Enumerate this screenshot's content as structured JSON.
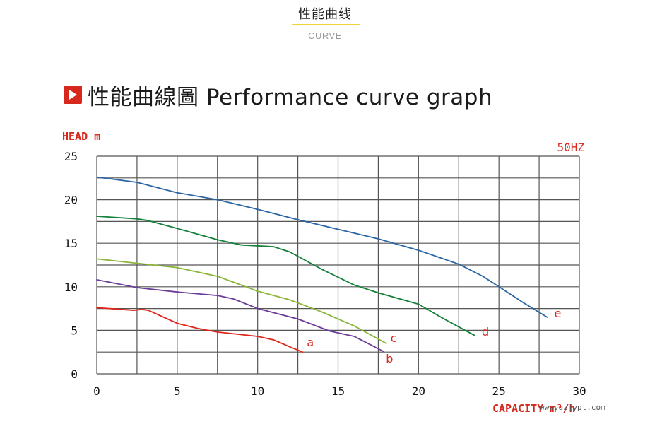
{
  "header": {
    "title": "性能曲线",
    "subtitle": "CURVE",
    "underline_color": "#f3d233"
  },
  "section": {
    "icon": "play-icon",
    "heading": "性能曲線圖 Performance curve graph",
    "accent_color": "#d7281d"
  },
  "watermark": "www.gzjypt.com",
  "chart_data": {
    "type": "line",
    "title": "",
    "xlabel": "CAPACITY m³/h",
    "ylabel": "HEAD m",
    "frequency_label": "50HZ",
    "xlim": [
      0,
      30
    ],
    "ylim": [
      0,
      25
    ],
    "x_ticks": [
      0,
      5,
      10,
      15,
      20,
      25,
      30
    ],
    "y_ticks": [
      0,
      5,
      10,
      15,
      20,
      25
    ],
    "grid": true,
    "grid_x_step": 2.5,
    "grid_y_step": 2.5,
    "series": [
      {
        "name": "a",
        "color": "#e0261b",
        "points": [
          [
            0,
            7.6
          ],
          [
            1.5,
            7.4
          ],
          [
            2.3,
            7.3
          ],
          [
            2.8,
            7.4
          ],
          [
            3.2,
            7.3
          ],
          [
            5,
            5.8
          ],
          [
            6.3,
            5.2
          ],
          [
            7.5,
            4.8
          ],
          [
            10,
            4.3
          ],
          [
            11,
            3.9
          ],
          [
            12,
            3.1
          ],
          [
            12.8,
            2.5
          ]
        ]
      },
      {
        "name": "b",
        "color": "#6b3d99",
        "points": [
          [
            0,
            10.8
          ],
          [
            2.5,
            9.9
          ],
          [
            5,
            9.4
          ],
          [
            7.5,
            9.0
          ],
          [
            8.5,
            8.6
          ],
          [
            10,
            7.5
          ],
          [
            12.5,
            6.3
          ],
          [
            14.5,
            4.9
          ],
          [
            16,
            4.3
          ],
          [
            17.8,
            2.6
          ]
        ]
      },
      {
        "name": "c",
        "color": "#8cb43a",
        "points": [
          [
            0,
            13.2
          ],
          [
            2.5,
            12.7
          ],
          [
            5,
            12.2
          ],
          [
            7.5,
            11.2
          ],
          [
            10,
            9.5
          ],
          [
            12,
            8.5
          ],
          [
            14,
            7.1
          ],
          [
            16,
            5.5
          ],
          [
            18,
            3.5
          ]
        ]
      },
      {
        "name": "d",
        "color": "#14803a",
        "points": [
          [
            0,
            18.1
          ],
          [
            2.5,
            17.8
          ],
          [
            3.2,
            17.6
          ],
          [
            5,
            16.7
          ],
          [
            7.5,
            15.4
          ],
          [
            9,
            14.8
          ],
          [
            11,
            14.6
          ],
          [
            12,
            14.0
          ],
          [
            14,
            12.0
          ],
          [
            16,
            10.2
          ],
          [
            17.5,
            9.3
          ],
          [
            20,
            8.0
          ],
          [
            21.5,
            6.4
          ],
          [
            23.5,
            4.4
          ]
        ]
      },
      {
        "name": "e",
        "color": "#2b65a3",
        "points": [
          [
            0,
            22.6
          ],
          [
            2.5,
            22.0
          ],
          [
            5,
            20.8
          ],
          [
            7.5,
            20.0
          ],
          [
            10,
            18.9
          ],
          [
            12.5,
            17.7
          ],
          [
            15,
            16.6
          ],
          [
            17.5,
            15.5
          ],
          [
            20,
            14.2
          ],
          [
            22.5,
            12.6
          ],
          [
            24,
            11.2
          ],
          [
            25,
            10.0
          ],
          [
            26.5,
            8.2
          ],
          [
            28,
            6.5
          ]
        ]
      }
    ]
  }
}
